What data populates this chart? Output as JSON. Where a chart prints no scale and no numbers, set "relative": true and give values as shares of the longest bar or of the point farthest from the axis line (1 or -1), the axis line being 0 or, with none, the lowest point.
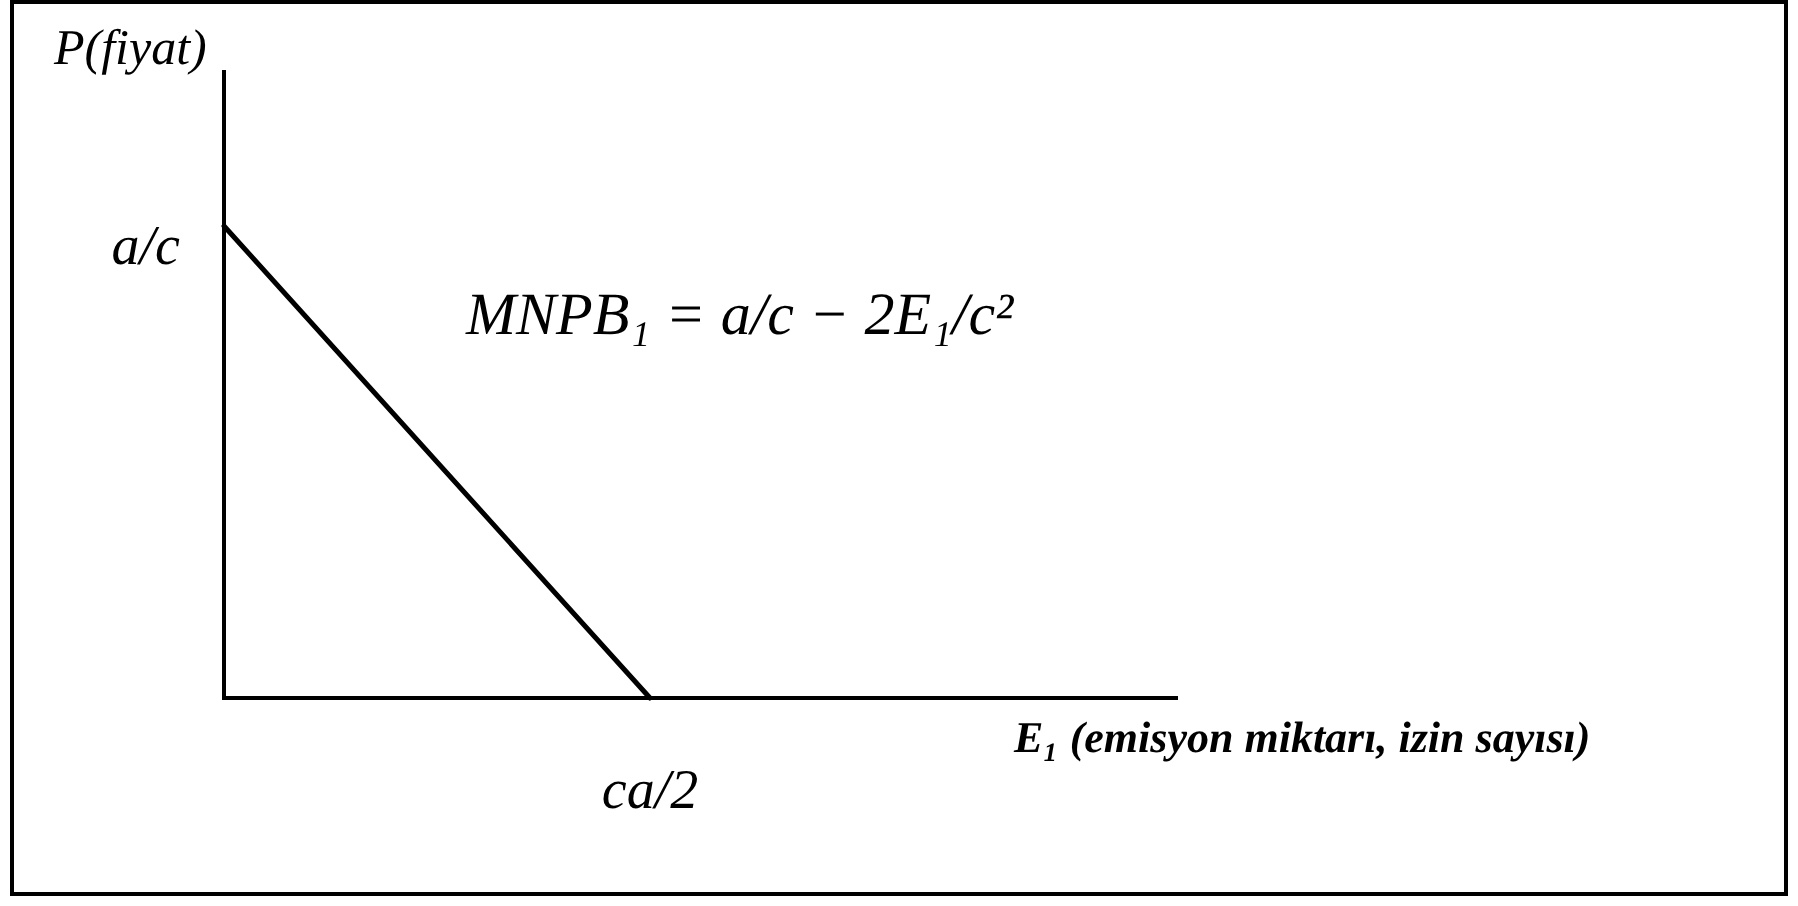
{
  "chart_data": {
    "type": "line",
    "relative": true,
    "ylabel": "P(fiyat)",
    "xlabel": "E₁ (emisyon miktarı, izin sayısı)",
    "categories": [
      null,
      null
    ],
    "values": [
      1,
      0
    ],
    "color": "#000000",
    "line_style": "solid",
    "annotations": [
      "a/c",
      {
        "text": "ca/2",
        "y": 0
      },
      "MNPB₁ = a/c − 2E₁/c²"
    ]
  }
}
